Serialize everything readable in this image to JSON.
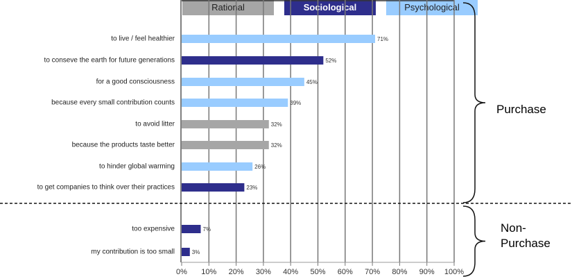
{
  "chart_data": {
    "type": "bar",
    "orientation": "horizontal",
    "legend": [
      {
        "name": "Rational",
        "color": "#a6a6a6",
        "text_color": "#222222"
      },
      {
        "name": "Sociological",
        "color": "#2e2e8c",
        "text_color": "#ffffff"
      },
      {
        "name": "Psychological",
        "color": "#99ccff",
        "text_color": "#222222"
      }
    ],
    "legend_placement": "top",
    "categories": [
      "to live / feel healthier",
      "to conseve the earth for future generations",
      "for a good consciousness",
      "because every small contribution counts",
      "to avoid litter",
      "because the products taste better",
      "to hinder global warming",
      "to get companies to think over their practices",
      "too expensive",
      "my contribution is too small"
    ],
    "values": [
      71,
      52,
      45,
      39,
      32,
      32,
      26,
      23,
      7,
      3
    ],
    "series_type": [
      "Psychological",
      "Sociological",
      "Psychological",
      "Psychological",
      "Rational",
      "Rational",
      "Psychological",
      "Sociological",
      "Sociological",
      "Sociological"
    ],
    "data_labels": [
      "71%",
      "52%",
      "45%",
      "39%",
      "32%",
      "32%",
      "26%",
      "23%",
      "7%",
      "3%"
    ],
    "xlim": [
      0,
      100
    ],
    "xticks": [
      "0%",
      "10%",
      "20%",
      "30%",
      "40%",
      "50%",
      "60%",
      "70%",
      "80%",
      "90%",
      "100%"
    ],
    "grid": true,
    "groups": [
      {
        "label": "Purchase",
        "count": 8
      },
      {
        "label": "Non-Purchase",
        "label_lines": [
          "Non-",
          "Purchase"
        ],
        "count": 2
      }
    ]
  }
}
